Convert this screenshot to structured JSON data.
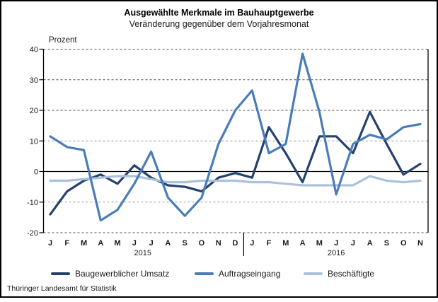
{
  "title": "Ausgewählte Merkmale im Bauhauptgewerbe",
  "subtitle": "Veränderung gegenüber dem Vorjahresmonat",
  "y_axis_label": "Prozent",
  "footer": "Thüringer Landesamt für Statistik",
  "chart_data": {
    "type": "line",
    "x_labels": [
      "J",
      "F",
      "M",
      "A",
      "M",
      "J",
      "J",
      "A",
      "S",
      "O",
      "N",
      "D",
      "J",
      "F",
      "M",
      "A",
      "M",
      "J",
      "J",
      "A",
      "S",
      "O",
      "N"
    ],
    "year_groups": [
      {
        "label": "2015",
        "months": 12
      },
      {
        "label": "2016",
        "months": 11
      }
    ],
    "ylim": [
      -20,
      40
    ],
    "y_ticks": [
      40,
      30,
      20,
      10,
      0,
      -10,
      -20
    ],
    "grid": "horizontal-dashed",
    "legend_position": "bottom",
    "series": [
      {
        "name": "Baugewerblicher Umsatz",
        "color": "#24426E",
        "values": [
          -14,
          -6.5,
          -3,
          -1,
          -4,
          2,
          -2,
          -4.5,
          -5,
          -6.5,
          -2,
          -0.5,
          -2,
          14.5,
          6,
          -3.5,
          11.5,
          11.5,
          6,
          19.5,
          9,
          -1,
          2.5
        ]
      },
      {
        "name": "Auftragseingang",
        "color": "#4A7CB8",
        "values": [
          11.5,
          8,
          7,
          -16,
          -12.5,
          -4,
          6.5,
          -8.5,
          -14.5,
          -8.5,
          9,
          20,
          26.5,
          6,
          9,
          38.5,
          19.5,
          -7.5,
          9,
          12,
          10.5,
          14.5,
          15.5
        ]
      },
      {
        "name": "Beschäftigte",
        "color": "#ACC0DC",
        "values": [
          -3,
          -3,
          -2.5,
          -2,
          -1.5,
          -1.5,
          -2.5,
          -3.5,
          -3.5,
          -3,
          -3,
          -3,
          -3.5,
          -3.5,
          -4,
          -4.5,
          -4.5,
          -4.5,
          -4.5,
          -1.5,
          -3,
          -3.5,
          -3
        ]
      }
    ]
  }
}
